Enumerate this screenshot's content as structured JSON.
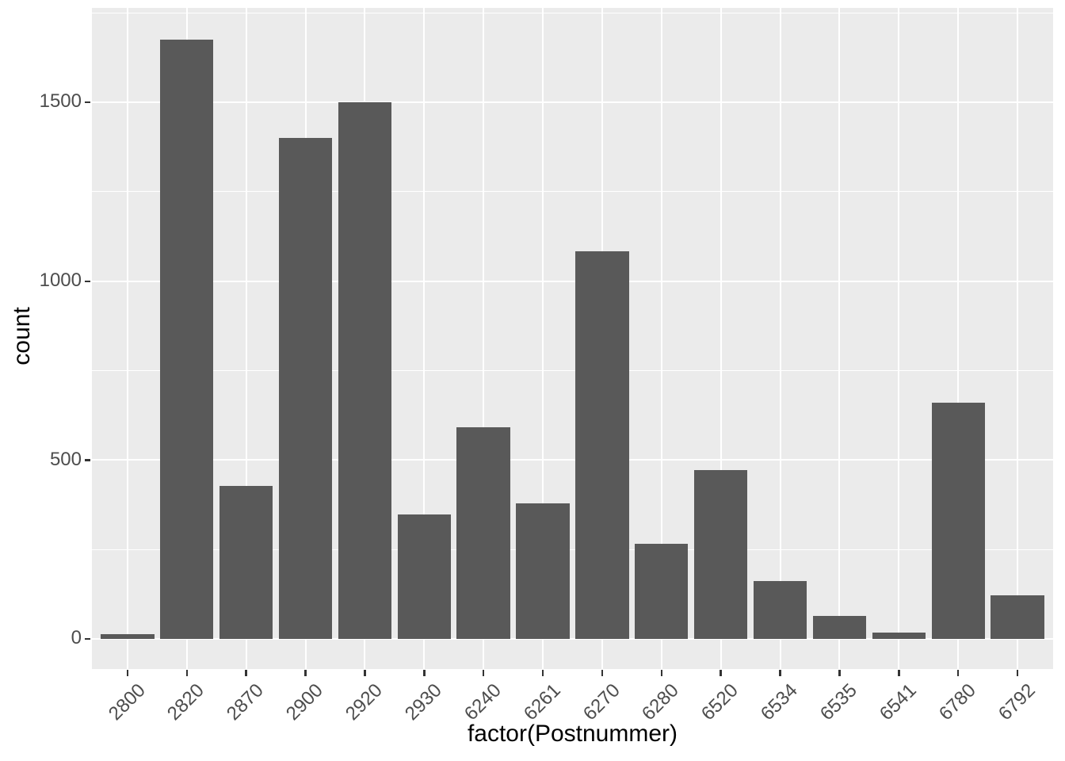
{
  "chart_data": {
    "type": "bar",
    "title": "",
    "xlabel": "factor(Postnummer)",
    "ylabel": "count",
    "categories": [
      "2800",
      "2820",
      "2870",
      "2900",
      "2920",
      "2930",
      "6240",
      "6261",
      "6270",
      "6280",
      "6520",
      "6534",
      "6535",
      "6541",
      "6780",
      "6792"
    ],
    "values": [
      13,
      1675,
      428,
      1400,
      1500,
      347,
      591,
      380,
      1083,
      266,
      472,
      162,
      64,
      17,
      660,
      123
    ],
    "y_ticks": [
      0,
      500,
      1000,
      1500
    ],
    "y_minor_ticks": [
      250,
      750,
      1250,
      1750
    ],
    "ylim": [
      -84,
      1764
    ],
    "bar_rel_width": 0.9,
    "grid": "on",
    "legend": "none",
    "style": {
      "bar_fill": "#595959",
      "panel_bg": "#EBEBEB",
      "grid_color": "#FFFFFF",
      "tick_label_color": "#4D4D4D",
      "axis_title_color": "#000000",
      "tick_mark_color": "#333333",
      "outer_bg": "#FFFFFF"
    }
  }
}
